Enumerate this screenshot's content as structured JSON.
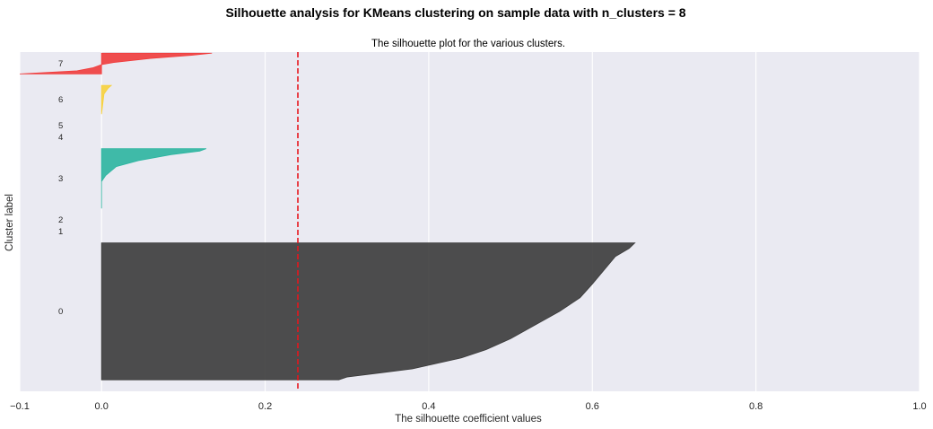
{
  "chart_data": {
    "type": "area",
    "title": "Silhouette analysis for KMeans clustering on sample data with n_clusters = 8",
    "subtitle": "The silhouette plot for the various clusters.",
    "xlabel": "The silhouette coefficient values",
    "ylabel": "Cluster label",
    "xlim": [
      -0.1,
      1.0
    ],
    "ylim": [
      0,
      295
    ],
    "xticks": [
      -0.1,
      0.0,
      0.2,
      0.4,
      0.6,
      0.8,
      1.0
    ],
    "xtick_labels": [
      "−0.1",
      "0.0",
      "0.2",
      "0.4",
      "0.6",
      "0.8",
      "1.0"
    ],
    "average_silhouette_score": 0.24,
    "grid": "x",
    "background": "#eaeaf2",
    "clusters": [
      {
        "label": "0",
        "color": "#3b3b3b",
        "y_lower": 10,
        "size": 119,
        "profile": [
          [
            0,
            0.652
          ],
          [
            0.04,
            0.645
          ],
          [
            0.1,
            0.628
          ],
          [
            0.2,
            0.614
          ],
          [
            0.3,
            0.6
          ],
          [
            0.4,
            0.585
          ],
          [
            0.5,
            0.56
          ],
          [
            0.6,
            0.53
          ],
          [
            0.7,
            0.5
          ],
          [
            0.78,
            0.47
          ],
          [
            0.84,
            0.44
          ],
          [
            0.88,
            0.41
          ],
          [
            0.92,
            0.38
          ],
          [
            0.95,
            0.34
          ],
          [
            0.98,
            0.3
          ],
          [
            1.0,
            0.29
          ]
        ]
      },
      {
        "label": "1",
        "color": "#e64b35",
        "y_lower": 139,
        "size": 0,
        "profile": []
      },
      {
        "label": "2",
        "color": "#9ed63c",
        "y_lower": 149,
        "size": 0,
        "profile": []
      },
      {
        "label": "3",
        "color": "#2cb5a0",
        "y_lower": 159,
        "size": 52,
        "profile": [
          [
            0,
            0.128
          ],
          [
            0.04,
            0.12
          ],
          [
            0.1,
            0.085
          ],
          [
            0.2,
            0.045
          ],
          [
            0.3,
            0.018
          ],
          [
            0.45,
            0.005
          ],
          [
            0.55,
            0.0
          ],
          [
            1.0,
            0.0
          ]
        ]
      },
      {
        "label": "4",
        "color": "#3a7fd0",
        "y_lower": 221,
        "size": 0,
        "profile": []
      },
      {
        "label": "5",
        "color": "#9b59d0",
        "y_lower": 231,
        "size": 0,
        "profile": []
      },
      {
        "label": "6",
        "color": "#f7d13d",
        "y_lower": 241,
        "size": 25,
        "profile": [
          [
            0,
            0.012
          ],
          [
            0.1,
            0.008
          ],
          [
            0.3,
            0.003
          ],
          [
            1.0,
            0.0
          ]
        ]
      },
      {
        "label": "7",
        "color": "#f03c3c",
        "y_lower": 276,
        "size": 18,
        "profile": [
          [
            0,
            0.135
          ],
          [
            0.1,
            0.11
          ],
          [
            0.25,
            0.06
          ],
          [
            0.45,
            0.015
          ],
          [
            0.55,
            0.0
          ],
          [
            0.7,
            -0.01
          ],
          [
            0.85,
            -0.03
          ],
          [
            1.0,
            -0.1
          ]
        ]
      }
    ]
  }
}
